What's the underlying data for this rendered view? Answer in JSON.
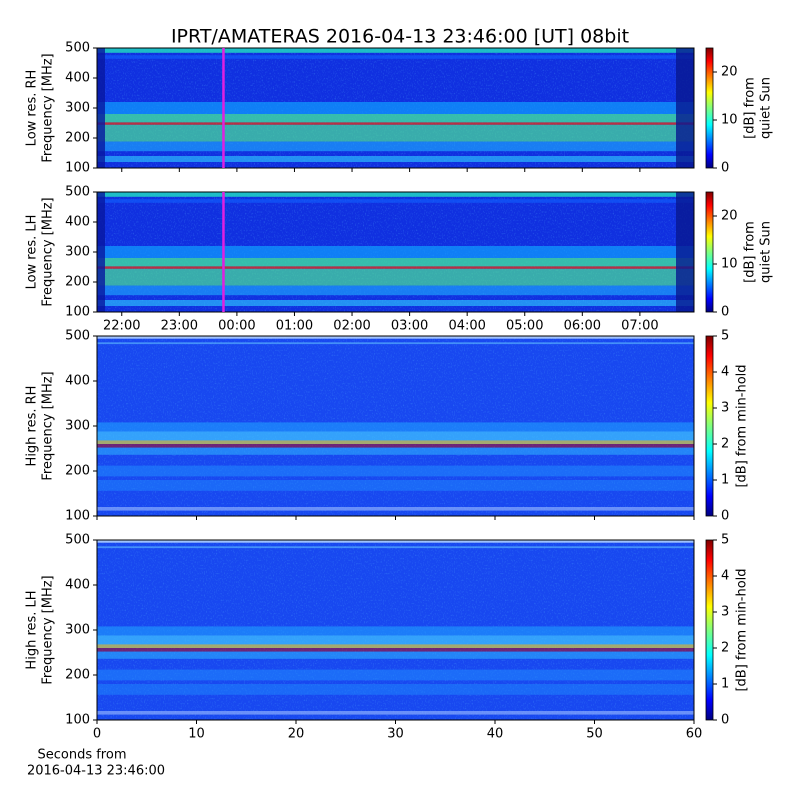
{
  "chart_data": [
    {
      "type": "heatmap",
      "title": "IPRT/AMATERAS 2016-04-13 23:46:00 [UT]   08bit",
      "kind": "low",
      "ylabel": [
        "Low res. RH",
        "Frequency [MHz]"
      ],
      "ylim": [
        100,
        500
      ],
      "yticks": [
        100,
        200,
        300,
        400,
        500
      ],
      "xlim": [
        -2.43,
        7.94
      ],
      "xticks": [
        -2,
        -1,
        0,
        1,
        2,
        3,
        4,
        5,
        6,
        7
      ],
      "xticklabels": false,
      "cursor": {
        "value": -0.2333,
        "color": "#e020e0"
      },
      "colormap": "jet",
      "clim": [
        0,
        25
      ],
      "cticks": [
        0,
        10,
        20
      ],
      "clabel": [
        "[dB] from",
        "quiet Sun"
      ]
    },
    {
      "type": "heatmap",
      "kind": "low",
      "ylabel": [
        "Low res. LH",
        "Frequency [MHz]"
      ],
      "ylim": [
        100,
        500
      ],
      "yticks": [
        100,
        200,
        300,
        400,
        500
      ],
      "xlim": [
        -2.43,
        7.94
      ],
      "xticks": [
        {
          "value": -2,
          "label": "22:00"
        },
        {
          "value": -1,
          "label": "23:00"
        },
        {
          "value": 0,
          "label": "00:00"
        },
        {
          "value": 1,
          "label": "01:00"
        },
        {
          "value": 2,
          "label": "02:00"
        },
        {
          "value": 3,
          "label": "03:00"
        },
        {
          "value": 4,
          "label": "04:00"
        },
        {
          "value": 5,
          "label": "05:00"
        },
        {
          "value": 6,
          "label": "06:00"
        },
        {
          "value": 7,
          "label": "07:00"
        }
      ],
      "xticklabels": true,
      "cursor": {
        "value": -0.2333,
        "color": "#e020e0"
      },
      "colormap": "jet",
      "clim": [
        0,
        25
      ],
      "cticks": [
        0,
        10,
        20
      ],
      "clabel": [
        "[dB] from",
        "quiet Sun"
      ]
    },
    {
      "type": "heatmap",
      "kind": "high",
      "ylabel": [
        "High res. RH",
        "Frequency [MHz]"
      ],
      "ylim": [
        100,
        500
      ],
      "yticks": [
        100,
        200,
        300,
        400,
        500
      ],
      "xlim": [
        0,
        60
      ],
      "xticks": [
        0,
        10,
        20,
        30,
        40,
        50,
        60
      ],
      "xticklabels": false,
      "colormap": "jet",
      "clim": [
        0,
        5
      ],
      "cticks": [
        0,
        1,
        2,
        3,
        4,
        5
      ],
      "clabel": [
        "[dB] from min-hold"
      ]
    },
    {
      "type": "heatmap",
      "kind": "high",
      "ylabel": [
        "High res. LH",
        "Frequency [MHz]"
      ],
      "ylim": [
        100,
        500
      ],
      "yticks": [
        100,
        200,
        300,
        400,
        500
      ],
      "xlim": [
        0,
        60
      ],
      "xticks": [
        0,
        10,
        20,
        30,
        40,
        50,
        60
      ],
      "xticklabels": true,
      "xlabel": [
        "Seconds from",
        "2016-04-13 23:46:00"
      ],
      "colormap": "jet",
      "clim": [
        0,
        5
      ],
      "cticks": [
        0,
        1,
        2,
        3,
        4,
        5
      ],
      "clabel": [
        "[dB] from min-hold"
      ]
    }
  ]
}
